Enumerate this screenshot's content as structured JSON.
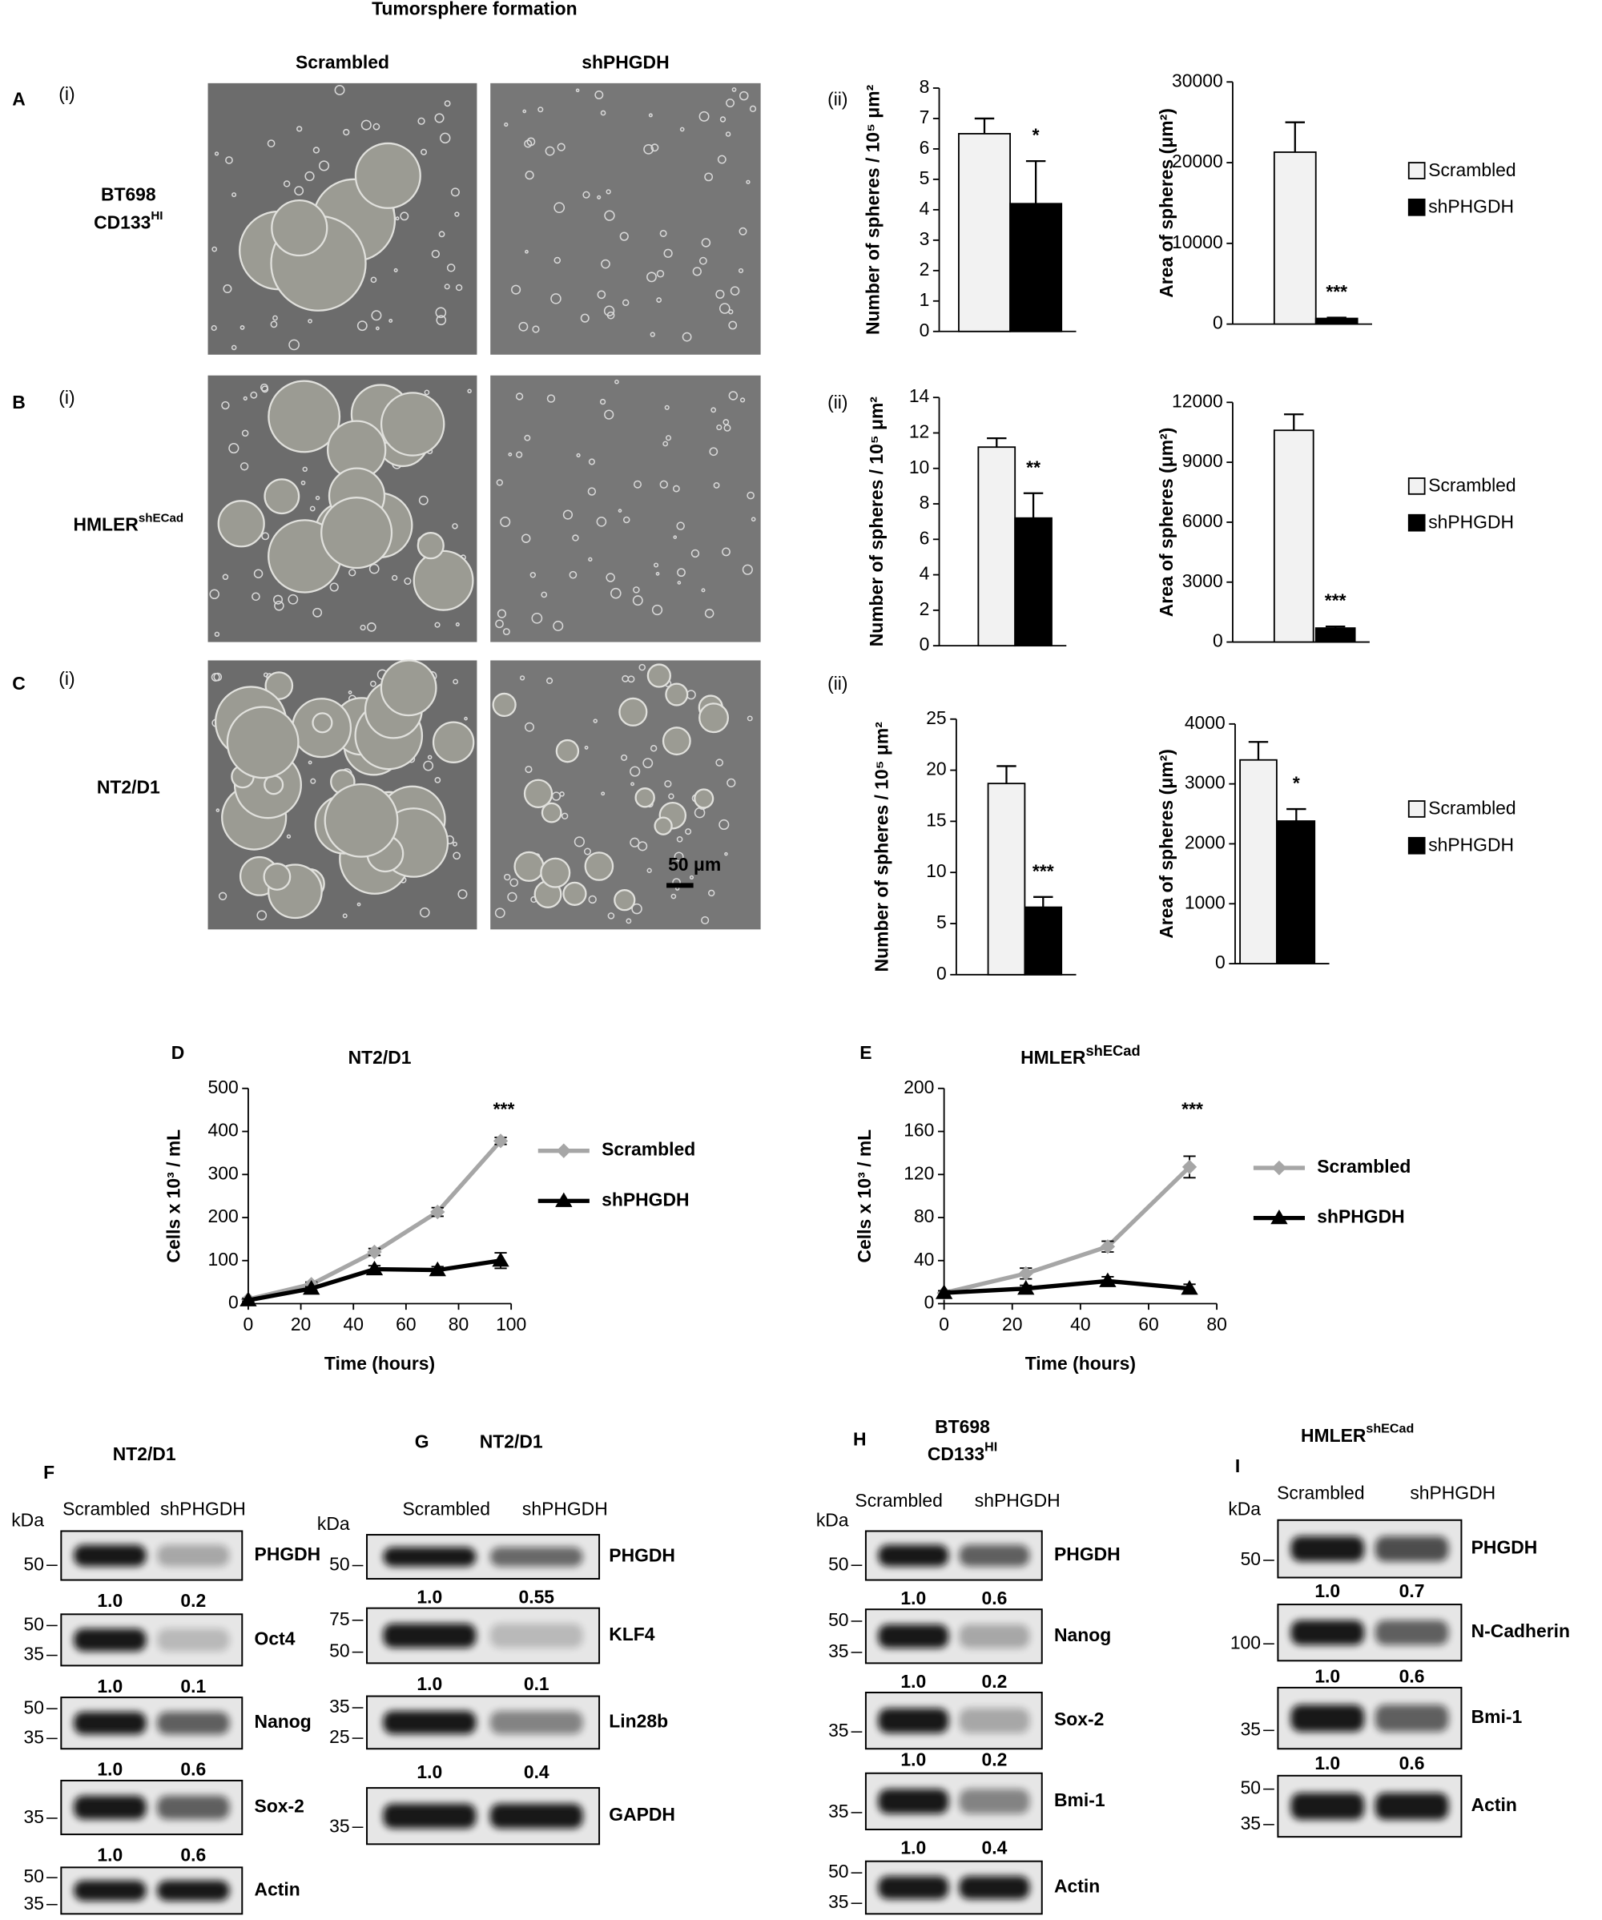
{
  "figure_title": "Tumorsphere formation",
  "micrographs": {
    "columns": [
      "Scrambled",
      "shPHGDH"
    ],
    "rows": [
      {
        "panel": "A",
        "part": "(i)",
        "chart_part": "(ii)",
        "label": [
          "BT698",
          "CD133"
        ],
        "label_superscript": "HI"
      },
      {
        "panel": "B",
        "part": "(i)",
        "chart_part": "(ii)",
        "label": [
          "HMLER"
        ],
        "label_superscript": "shECad"
      },
      {
        "panel": "C",
        "part": "(i)",
        "chart_part": "(ii)",
        "label": [
          "NT2/D1"
        ]
      }
    ],
    "scale_bar": "50 μm"
  },
  "chart_data": [
    {
      "type": "bar",
      "ylabel": "Number of spheres / 10⁵ μm²",
      "ylim": [
        0,
        8
      ],
      "yticks": [
        0,
        1,
        2,
        3,
        4,
        5,
        6,
        7,
        8
      ],
      "series": [
        {
          "color": "#f2f2f2",
          "values": [
            6.5
          ],
          "errors": [
            0.5
          ]
        },
        {
          "color": "#000000",
          "values": [
            4.2
          ],
          "errors": [
            1.4
          ]
        }
      ],
      "annotation": "*"
    },
    {
      "type": "bar",
      "ylabel": "Area of spheres (μm²)",
      "ylim": [
        0,
        30000
      ],
      "yticks": [
        0,
        10000,
        20000,
        30000
      ],
      "series": [
        {
          "name": "Scrambled",
          "color": "#f2f2f2",
          "values": [
            21300
          ],
          "errors": [
            3700
          ]
        },
        {
          "name": "shPHGDH",
          "color": "#000000",
          "values": [
            700
          ],
          "errors": [
            100
          ]
        }
      ],
      "annotation": "***",
      "legend": "outside-right"
    },
    {
      "type": "bar",
      "ylabel": "Number of spheres / 10⁵ μm²",
      "ylim": [
        0,
        14
      ],
      "yticks": [
        0,
        2,
        4,
        6,
        8,
        10,
        12,
        14
      ],
      "series": [
        {
          "color": "#f2f2f2",
          "values": [
            11.2
          ],
          "errors": [
            0.5
          ]
        },
        {
          "color": "#000000",
          "values": [
            7.2
          ],
          "errors": [
            1.4
          ]
        }
      ],
      "annotation": "**"
    },
    {
      "type": "bar",
      "ylabel": "Area of spheres (μm²)",
      "ylim": [
        0,
        12000
      ],
      "yticks": [
        0,
        3000,
        6000,
        9000,
        12000
      ],
      "series": [
        {
          "name": "Scrambled",
          "color": "#f2f2f2",
          "values": [
            10600
          ],
          "errors": [
            800
          ]
        },
        {
          "name": "shPHGDH",
          "color": "#000000",
          "values": [
            700
          ],
          "errors": [
            80
          ]
        }
      ],
      "annotation": "***",
      "legend": "outside-right"
    },
    {
      "type": "bar",
      "ylabel": "Number of spheres / 10⁵ μm²",
      "ylim": [
        0,
        25
      ],
      "yticks": [
        0,
        5,
        10,
        15,
        20,
        25
      ],
      "series": [
        {
          "color": "#f2f2f2",
          "values": [
            18.7
          ],
          "errors": [
            1.7
          ]
        },
        {
          "color": "#000000",
          "values": [
            6.6
          ],
          "errors": [
            1.0
          ]
        }
      ],
      "annotation": "***"
    },
    {
      "type": "bar",
      "ylabel": "Area of spheres (μm²)",
      "ylim": [
        0,
        4000
      ],
      "yticks": [
        0,
        1000,
        2000,
        3000,
        4000
      ],
      "series": [
        {
          "name": "Scrambled",
          "color": "#f2f2f2",
          "values": [
            3400
          ],
          "errors": [
            300
          ]
        },
        {
          "name": "shPHGDH",
          "color": "#000000",
          "values": [
            2380
          ],
          "errors": [
            200
          ]
        }
      ],
      "annotation": "*",
      "legend": "outside-right"
    },
    {
      "type": "line",
      "panel": "D",
      "title": "NT2/D1",
      "xlabel": "Time (hours)",
      "ylabel": "Cells x 10³ / mL",
      "x": [
        0,
        24,
        48,
        72,
        96
      ],
      "xlim": [
        0,
        100
      ],
      "xticks": [
        0,
        20,
        40,
        60,
        80,
        100
      ],
      "ylim": [
        0,
        500
      ],
      "yticks": [
        0,
        100,
        200,
        300,
        400,
        500
      ],
      "series": [
        {
          "name": "Scrambled",
          "color": "#a6a6a6",
          "marker": "diamond",
          "values": [
            10,
            45,
            120,
            213,
            378
          ],
          "errors": [
            3,
            5,
            8,
            10,
            8
          ]
        },
        {
          "name": "shPHGDH",
          "color": "#000000",
          "marker": "triangle",
          "values": [
            8,
            35,
            80,
            78,
            100
          ],
          "errors": [
            3,
            4,
            8,
            8,
            18
          ]
        }
      ],
      "annotation": "***",
      "legend": "outside-right"
    },
    {
      "type": "line",
      "panel": "E",
      "title": "HMLER",
      "title_superscript": "shECad",
      "xlabel": "Time (hours)",
      "ylabel": "Cells x 10³ / mL",
      "x": [
        0,
        24,
        48,
        72
      ],
      "xlim": [
        0,
        80
      ],
      "xticks": [
        0,
        20,
        40,
        60,
        80
      ],
      "ylim": [
        0,
        200
      ],
      "yticks": [
        0,
        40,
        80,
        120,
        160,
        200
      ],
      "series": [
        {
          "name": "Scrambled",
          "color": "#a6a6a6",
          "marker": "diamond",
          "values": [
            10,
            28,
            53,
            127
          ],
          "errors": [
            2,
            5,
            5,
            10
          ]
        },
        {
          "name": "shPHGDH",
          "color": "#000000",
          "marker": "triangle",
          "values": [
            10,
            14,
            21,
            14
          ],
          "errors": [
            2,
            3,
            4,
            4
          ]
        }
      ],
      "annotation": "***",
      "legend": "outside-right"
    }
  ],
  "blots": [
    {
      "panel": "F",
      "title": [
        "NT2/D1"
      ],
      "unit": "kDa",
      "lanes": [
        "Scrambled",
        "shPHGDH"
      ],
      "bands": [
        {
          "name": "PHGDH",
          "markers": [
            50
          ],
          "quant": [
            "1.0",
            "0.2"
          ]
        },
        {
          "name": "Oct4",
          "markers": [
            50,
            35
          ],
          "quant": [
            "1.0",
            "0.1"
          ]
        },
        {
          "name": "Nanog",
          "markers": [
            50,
            35
          ],
          "quant": [
            "1.0",
            "0.6"
          ]
        },
        {
          "name": "Sox-2",
          "markers": [
            35
          ],
          "quant": [
            "1.0",
            "0.6"
          ]
        },
        {
          "name": "Actin",
          "markers": [
            50,
            35
          ]
        }
      ]
    },
    {
      "panel": "G",
      "title": [
        "NT2/D1"
      ],
      "unit": "kDa",
      "lanes": [
        "Scrambled",
        "shPHGDH"
      ],
      "bands": [
        {
          "name": "PHGDH",
          "markers": [
            50
          ],
          "quant": [
            "1.0",
            "0.55"
          ]
        },
        {
          "name": "KLF4",
          "markers": [
            75,
            50
          ],
          "quant": [
            "1.0",
            "0.1"
          ]
        },
        {
          "name": "Lin28b",
          "markers": [
            35,
            25
          ],
          "quant": [
            "1.0",
            "0.4"
          ]
        },
        {
          "name": "GAPDH",
          "markers": [
            35
          ]
        }
      ]
    },
    {
      "panel": "H",
      "title": [
        "BT698",
        "CD133"
      ],
      "title_superscript": "HI",
      "unit": "kDa",
      "lanes": [
        "Scrambled",
        "shPHGDH"
      ],
      "bands": [
        {
          "name": "PHGDH",
          "markers": [
            50
          ],
          "quant": [
            "1.0",
            "0.6"
          ]
        },
        {
          "name": "Nanog",
          "markers": [
            50,
            35
          ],
          "quant": [
            "1.0",
            "0.2"
          ]
        },
        {
          "name": "Sox-2",
          "markers": [
            35
          ],
          "quant": [
            "1.0",
            "0.2"
          ]
        },
        {
          "name": "Bmi-1",
          "markers": [
            35
          ],
          "quant": [
            "1.0",
            "0.4"
          ]
        },
        {
          "name": "Actin",
          "markers": [
            50,
            35
          ]
        }
      ]
    },
    {
      "panel": "I",
      "title": [
        "HMLER"
      ],
      "title_superscript": "shECad",
      "unit": "kDa",
      "lanes": [
        "Scrambled",
        "shPHGDH"
      ],
      "bands": [
        {
          "name": "PHGDH",
          "markers": [
            50
          ],
          "quant": [
            "1.0",
            "0.7"
          ]
        },
        {
          "name": "N-Cadherin",
          "markers": [
            100
          ],
          "quant": [
            "1.0",
            "0.6"
          ]
        },
        {
          "name": "Bmi-1",
          "markers": [
            35
          ],
          "quant": [
            "1.0",
            "0.6"
          ]
        },
        {
          "name": "Actin",
          "markers": [
            50,
            35
          ]
        }
      ]
    }
  ]
}
